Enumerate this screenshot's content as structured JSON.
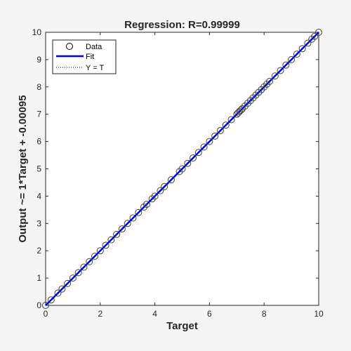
{
  "chart_data": {
    "type": "scatter",
    "title": "Regression: R=0.99999",
    "xlabel": "Target",
    "ylabel": "Output ~= 1*Target + -0.00095",
    "xlim": [
      0,
      10
    ],
    "ylim": [
      0,
      10
    ],
    "xticks": [
      0,
      2,
      4,
      6,
      8,
      10
    ],
    "yticks": [
      0,
      1,
      2,
      3,
      4,
      5,
      6,
      7,
      8,
      9,
      10
    ],
    "grid": false,
    "legend_position": "top-left",
    "legend": [
      "Data",
      "Fit",
      "Y = T"
    ],
    "series": [
      {
        "name": "Data",
        "kind": "scatter",
        "marker": "open-circle",
        "color": "#000000",
        "x": [
          0.0,
          0.2,
          0.45,
          0.6,
          0.8,
          1.0,
          1.2,
          1.4,
          1.6,
          1.8,
          2.0,
          2.2,
          2.4,
          2.6,
          2.8,
          3.0,
          3.2,
          3.4,
          3.6,
          3.7,
          3.9,
          4.0,
          4.2,
          4.35,
          4.6,
          4.9,
          5.0,
          5.2,
          5.4,
          5.6,
          5.8,
          6.0,
          6.2,
          6.4,
          6.6,
          6.8,
          7.0,
          7.05,
          7.1,
          7.15,
          7.2,
          7.3,
          7.4,
          7.5,
          7.6,
          7.7,
          7.8,
          7.9,
          8.0,
          8.1,
          8.2,
          8.4,
          8.6,
          8.8,
          9.0,
          9.2,
          9.4,
          9.6,
          9.75,
          9.85,
          10.0
        ],
        "y": [
          0.0,
          0.2,
          0.45,
          0.6,
          0.8,
          1.0,
          1.2,
          1.4,
          1.6,
          1.8,
          2.0,
          2.2,
          2.4,
          2.6,
          2.8,
          3.0,
          3.2,
          3.4,
          3.6,
          3.7,
          3.9,
          4.0,
          4.2,
          4.35,
          4.6,
          4.9,
          5.0,
          5.2,
          5.4,
          5.6,
          5.8,
          6.0,
          6.2,
          6.4,
          6.6,
          6.8,
          7.0,
          7.05,
          7.1,
          7.15,
          7.2,
          7.3,
          7.4,
          7.5,
          7.6,
          7.7,
          7.8,
          7.9,
          8.0,
          8.1,
          8.2,
          8.4,
          8.6,
          8.8,
          9.0,
          9.2,
          9.4,
          9.6,
          9.75,
          9.85,
          10.0
        ]
      },
      {
        "name": "Fit",
        "kind": "line",
        "color": "#0000ff",
        "x": [
          0,
          10
        ],
        "y": [
          -0.00095,
          9.99905
        ]
      },
      {
        "name": "Y = T",
        "kind": "dotted-line",
        "color": "#000000",
        "x": [
          0,
          10
        ],
        "y": [
          0,
          10
        ]
      }
    ]
  }
}
